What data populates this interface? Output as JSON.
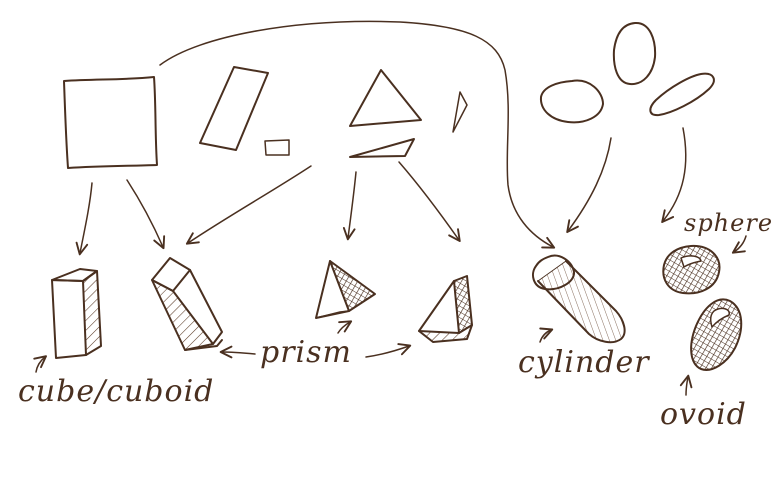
{
  "colors": {
    "ink": "#4a3020",
    "hatch": "#5a3a26",
    "background": "#ffffff"
  },
  "labels": {
    "cube": "cube/cuboid",
    "prism": "prism",
    "cylinder": "cylinder",
    "sphere": "sphere",
    "ovoid": "ovoid"
  }
}
